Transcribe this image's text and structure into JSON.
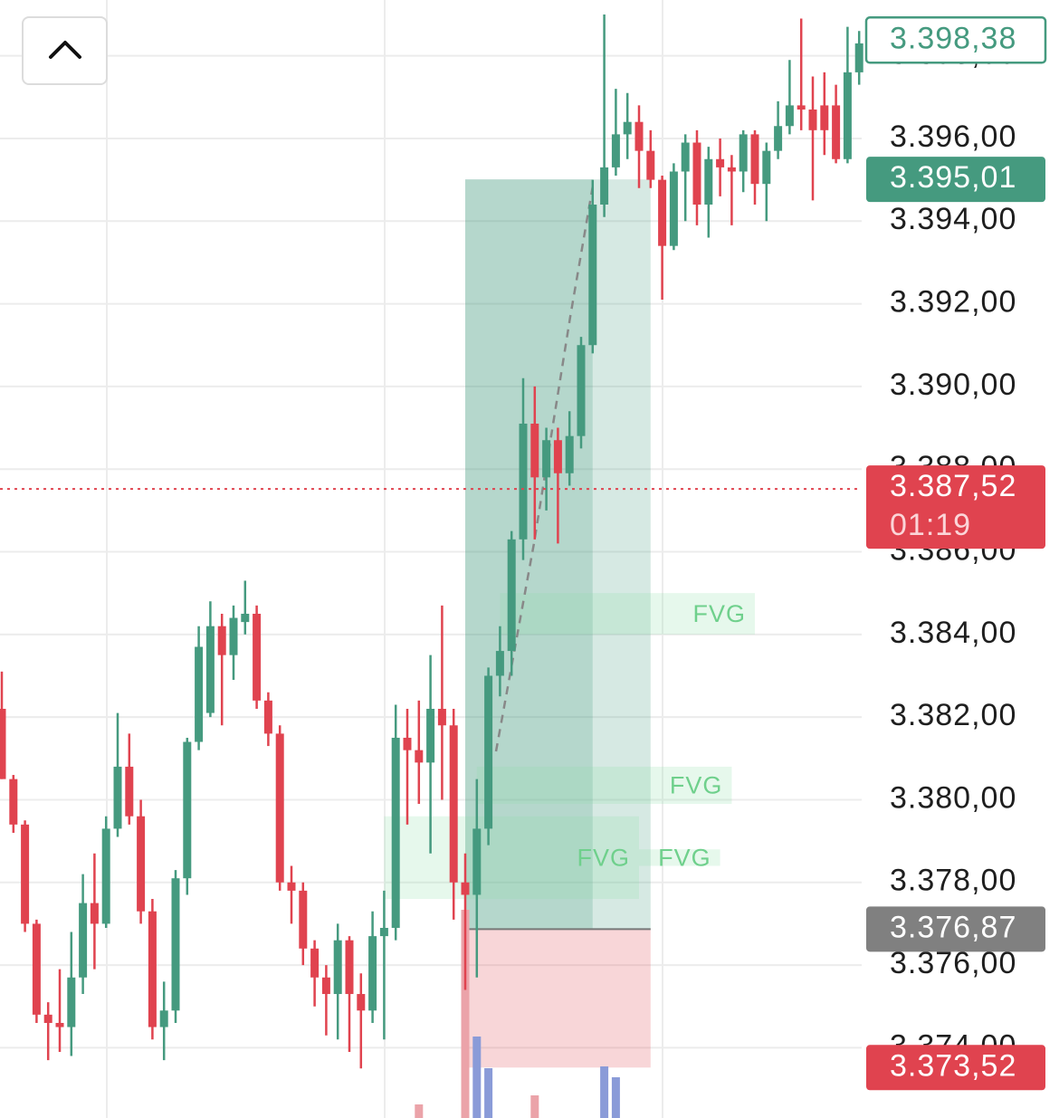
{
  "chart_data": {
    "type": "candlestick",
    "ylim": [
      3372.3,
      3399.35
    ],
    "yticks": [
      {
        "value": 3374,
        "label": "3.374,00"
      },
      {
        "value": 3376,
        "label": "3.376,00"
      },
      {
        "value": 3378,
        "label": "3.378,00"
      },
      {
        "value": 3380,
        "label": "3.380,00"
      },
      {
        "value": 3382,
        "label": "3.382,00"
      },
      {
        "value": 3384,
        "label": "3.384,00"
      },
      {
        "value": 3386,
        "label": "3.386,00"
      },
      {
        "value": 3388,
        "label": "3.388,00"
      },
      {
        "value": 3390,
        "label": "3.390,00"
      },
      {
        "value": 3392,
        "label": "3.392,00"
      },
      {
        "value": 3394,
        "label": "3.394,00"
      },
      {
        "value": 3396,
        "label": "3.396,00"
      },
      {
        "value": 3398,
        "label": "3.398,00"
      }
    ],
    "grid": true,
    "up_color": "#459a7f",
    "down_color": "#e0434f",
    "volume_up_color": "#8a9bd8",
    "volume_down_color": "#eba3a9",
    "open": [
      3382.2,
      3380.5,
      3379.4,
      3377.0,
      3374.8,
      3374.6,
      3374.5,
      3375.7,
      3377.5,
      3377.0,
      3379.3,
      3380.8,
      3379.6,
      3377.3,
      3374.5,
      3374.9,
      3378.1,
      3381.4,
      3382.1,
      3384.2,
      3383.5,
      3384.3,
      3384.5,
      3382.4,
      3381.6,
      3378.0,
      3377.8,
      3376.4,
      3375.7,
      3375.3,
      3376.6,
      3375.3,
      3374.9,
      3376.7,
      3376.9,
      3381.5,
      3381.2,
      3380.9,
      3382.2,
      3381.8,
      3378.0,
      3377.7,
      3379.3,
      3383.0,
      3383.6,
      3386.3,
      3389.1,
      3387.8,
      3388.7,
      3387.9,
      3388.8,
      3391.0,
      3394.4,
      3395.3,
      3396.1,
      3396.4,
      3395.7,
      3395.0,
      3393.4,
      3395.2,
      3395.9,
      3394.4,
      3395.5,
      3395.3,
      3395.2,
      3396.1,
      3394.9,
      3395.7,
      3396.3,
      3396.8,
      3396.7,
      3396.8,
      3396.8,
      3395.5,
      3397.6
    ],
    "high": [
      3383.1,
      3380.6,
      3379.5,
      3377.1,
      3375.1,
      3375.9,
      3376.8,
      3378.2,
      3378.7,
      3379.6,
      3382.1,
      3381.6,
      3380.0,
      3377.6,
      3375.6,
      3378.3,
      3381.5,
      3384.2,
      3384.8,
      3384.5,
      3384.7,
      3385.3,
      3384.7,
      3382.6,
      3381.8,
      3378.4,
      3378.0,
      3376.6,
      3376.0,
      3377.0,
      3376.7,
      3375.8,
      3377.3,
      3377.8,
      3382.3,
      3382.2,
      3382.4,
      3383.5,
      3384.7,
      3382.2,
      3378.7,
      3380.5,
      3383.2,
      3384.2,
      3386.5,
      3390.2,
      3390.0,
      3389.0,
      3389.0,
      3389.4,
      3391.2,
      3395.0,
      3399.0,
      3397.2,
      3397.1,
      3396.8,
      3396.2,
      3395.1,
      3395.4,
      3396.1,
      3396.2,
      3395.8,
      3396.0,
      3395.6,
      3396.2,
      3396.2,
      3395.9,
      3396.9,
      3397.9,
      3398.9,
      3397.5,
      3397.6,
      3397.3,
      3398.7,
      3398.6
    ],
    "low": [
      3380.5,
      3379.2,
      3376.8,
      3374.6,
      3373.7,
      3373.9,
      3373.8,
      3375.3,
      3375.9,
      3376.9,
      3379.1,
      3379.4,
      3377.0,
      3374.2,
      3373.7,
      3374.6,
      3377.7,
      3381.2,
      3382.0,
      3381.8,
      3382.9,
      3384.0,
      3382.2,
      3381.3,
      3377.8,
      3377.0,
      3376.0,
      3375.0,
      3374.3,
      3374.2,
      3373.9,
      3373.5,
      3374.6,
      3374.2,
      3376.6,
      3379.4,
      3379.9,
      3378.7,
      3380.0,
      3377.1,
      3375.4,
      3375.7,
      3378.9,
      3382.5,
      3383.0,
      3385.8,
      3386.3,
      3387.0,
      3386.2,
      3387.6,
      3388.5,
      3390.8,
      3394.1,
      3395.1,
      3395.5,
      3394.8,
      3394.8,
      3392.1,
      3393.3,
      3394.0,
      3393.9,
      3393.6,
      3394.6,
      3393.9,
      3394.7,
      3394.4,
      3394.0,
      3395.5,
      3396.1,
      3396.2,
      3394.5,
      3395.6,
      3395.4,
      3395.4,
      3397.3
    ],
    "close": [
      3380.5,
      3379.4,
      3377.0,
      3374.8,
      3374.6,
      3374.5,
      3375.7,
      3377.5,
      3377.0,
      3379.3,
      3380.8,
      3379.6,
      3377.3,
      3374.5,
      3374.9,
      3378.1,
      3381.4,
      3383.7,
      3384.2,
      3383.5,
      3384.4,
      3384.5,
      3382.4,
      3381.6,
      3378.0,
      3377.8,
      3376.4,
      3375.7,
      3375.3,
      3376.6,
      3375.3,
      3374.9,
      3376.7,
      3376.9,
      3381.5,
      3381.2,
      3380.9,
      3382.2,
      3381.8,
      3378.0,
      3377.7,
      3379.3,
      3383.0,
      3383.6,
      3386.3,
      3389.1,
      3387.8,
      3388.7,
      3387.9,
      3388.8,
      3391.0,
      3394.4,
      3395.3,
      3396.1,
      3396.4,
      3395.7,
      3395.0,
      3393.4,
      3395.2,
      3395.9,
      3394.4,
      3395.5,
      3395.3,
      3395.2,
      3396.1,
      3394.9,
      3395.7,
      3396.3,
      3396.8,
      3396.7,
      3396.2,
      3396.2,
      3395.5,
      3397.6,
      3398.3
    ],
    "volume": [
      null,
      null,
      null,
      null,
      null,
      null,
      null,
      null,
      null,
      null,
      null,
      null,
      null,
      null,
      null,
      null,
      null,
      null,
      null,
      null,
      null,
      null,
      null,
      null,
      null,
      null,
      null,
      null,
      null,
      null,
      null,
      null,
      null,
      null,
      null,
      null,
      15,
      null,
      null,
      null,
      230,
      90,
      55,
      null,
      null,
      null,
      25,
      null,
      null,
      null,
      null,
      null,
      57,
      45,
      null,
      null,
      null,
      null,
      null,
      null,
      null,
      null,
      null,
      null,
      null,
      null,
      null,
      null,
      null,
      null,
      null,
      null,
      null,
      null,
      null
    ],
    "fvg_zones": [
      {
        "label": "FVG",
        "top": 3385.0,
        "bottom": 3384.0,
        "start_index": 43,
        "end_index": 65
      },
      {
        "label": "FVG",
        "top": 3380.8,
        "bottom": 3379.9,
        "start_index": 41,
        "end_index": 63
      },
      {
        "label": "FVG",
        "top": 3379.6,
        "bottom": 3377.6,
        "start_index": 33,
        "end_index": 55
      },
      {
        "label": "FVG",
        "top": 3378.8,
        "bottom": 3378.4,
        "start_index": 55,
        "end_index": 62
      }
    ],
    "position": {
      "start_index": 40,
      "end_index": 56,
      "elapsed_index": 51
    },
    "price_labels": [
      {
        "value": 3398.38,
        "label": "3.398,38",
        "color": "#459a7f",
        "outline": true
      },
      {
        "value": 3395.01,
        "label": "3.395,01",
        "color": "#459a7f",
        "outline": false
      },
      {
        "value": 3387.52,
        "label": "3.387,52",
        "color": "#e0434f",
        "outline": false,
        "countdown": "01:19"
      },
      {
        "value": 3376.87,
        "label": "3.376,87",
        "color": "#808080",
        "outline": false
      },
      {
        "value": 3373.52,
        "label": "3.373,52",
        "color": "#e0434f",
        "outline": false
      }
    ]
  }
}
